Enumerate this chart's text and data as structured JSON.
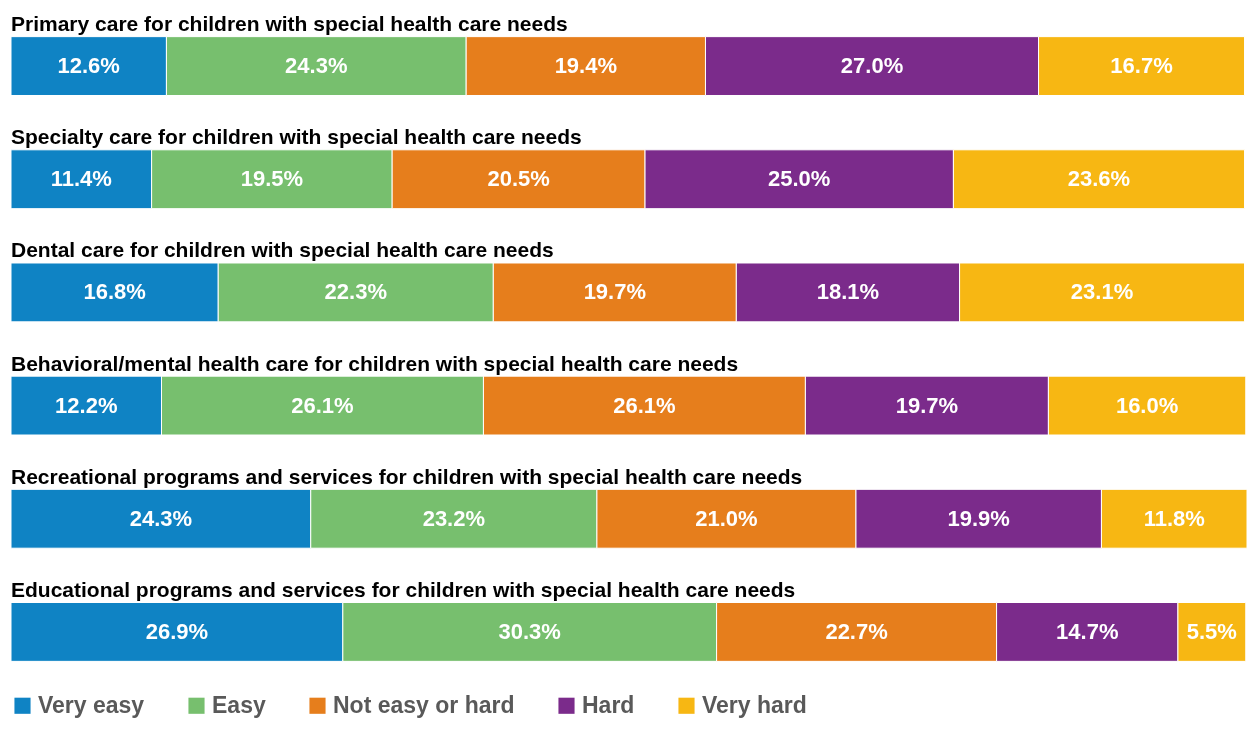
{
  "chart_data": {
    "type": "bar",
    "orientation": "horizontal",
    "stacked": true,
    "legend": "bottom",
    "categories": [
      "Primary care for children with special health care needs",
      "Specialty care for children with special health care needs",
      "Dental care for children with special health care needs",
      "Behavioral/mental health care for children with special health care needs",
      "Recreational programs and services for children with special health care needs",
      "Educational programs and services for children with special health care needs"
    ],
    "series": [
      {
        "name": "Very easy",
        "color": "#0f83c4",
        "values": [
          12.6,
          11.4,
          16.8,
          12.2,
          24.3,
          26.9
        ],
        "value_labels": [
          "12.6%",
          "11.4%",
          "16.8%",
          "12.2%",
          "24.3%",
          "26.9%"
        ]
      },
      {
        "name": "Easy",
        "color": "#77bf6e",
        "values": [
          24.3,
          19.5,
          22.3,
          26.1,
          23.2,
          30.3
        ],
        "value_labels": [
          "24.3%",
          "19.5%",
          "22.3%",
          "26.1%",
          "23.2%",
          "30.3%"
        ]
      },
      {
        "name": "Not easy or hard",
        "color": "#e67e1c",
        "values": [
          19.4,
          20.5,
          19.7,
          26.1,
          21.0,
          22.7
        ],
        "value_labels": [
          "19.4%",
          "20.5%",
          "19.7%",
          "26.1%",
          "21.0%",
          "22.7%"
        ]
      },
      {
        "name": "Hard",
        "color": "#7b2b8b",
        "values": [
          27.0,
          25.0,
          18.1,
          19.7,
          19.9,
          14.7
        ],
        "value_labels": [
          "27.0%",
          "25.0%",
          "18.1%",
          "19.7%",
          "19.9%",
          "14.7%"
        ]
      },
      {
        "name": "Very hard",
        "color": "#f7b713",
        "values": [
          16.7,
          23.6,
          23.1,
          16.0,
          11.8,
          5.5
        ],
        "value_labels": [
          "16.7%",
          "23.6%",
          "23.1%",
          "16.0%",
          "11.8%",
          "5.5%"
        ]
      }
    ]
  }
}
